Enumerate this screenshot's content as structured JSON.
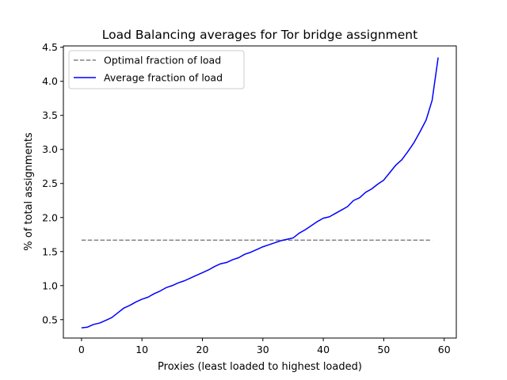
{
  "chart_data": {
    "type": "line",
    "title": "Load Balancing averages for Tor bridge assignment",
    "xlabel": "Proxies (least loaded to highest loaded)",
    "ylabel": "% of total assignments",
    "xlim": [
      -3,
      62
    ],
    "ylim": [
      0.23,
      4.52
    ],
    "x_ticks": [
      0,
      10,
      20,
      30,
      40,
      50,
      60
    ],
    "y_ticks": [
      0.5,
      1.0,
      1.5,
      2.0,
      2.5,
      3.0,
      3.5,
      4.0,
      4.5
    ],
    "y_tick_labels": [
      "0.5",
      "1.0",
      "1.5",
      "2.0",
      "2.5",
      "3.0",
      "3.5",
      "4.0",
      "4.5"
    ],
    "grid": false,
    "legend_position": "upper-left",
    "series": [
      {
        "name": "Optimal fraction of load",
        "style": "dashed",
        "color": "#808080",
        "x": [
          0,
          58
        ],
        "values": [
          1.667,
          1.667
        ]
      },
      {
        "name": "Average fraction of load",
        "style": "solid",
        "color": "#0000ff",
        "x": [
          0,
          1,
          2,
          3,
          4,
          5,
          6,
          7,
          8,
          9,
          10,
          11,
          12,
          13,
          14,
          15,
          16,
          17,
          18,
          19,
          20,
          21,
          22,
          23,
          24,
          25,
          26,
          27,
          28,
          29,
          30,
          31,
          32,
          33,
          34,
          35,
          36,
          37,
          38,
          39,
          40,
          41,
          42,
          43,
          44,
          45,
          46,
          47,
          48,
          49,
          50,
          51,
          52,
          53,
          54,
          55,
          56,
          57,
          58,
          59
        ],
        "values": [
          0.38,
          0.39,
          0.43,
          0.45,
          0.49,
          0.53,
          0.6,
          0.67,
          0.71,
          0.76,
          0.8,
          0.83,
          0.88,
          0.92,
          0.97,
          1.0,
          1.04,
          1.07,
          1.11,
          1.15,
          1.19,
          1.23,
          1.28,
          1.32,
          1.34,
          1.38,
          1.41,
          1.46,
          1.49,
          1.53,
          1.57,
          1.6,
          1.63,
          1.66,
          1.68,
          1.7,
          1.77,
          1.82,
          1.88,
          1.94,
          1.99,
          2.01,
          2.06,
          2.11,
          2.16,
          2.25,
          2.29,
          2.37,
          2.42,
          2.49,
          2.55,
          2.66,
          2.77,
          2.85,
          2.97,
          3.1,
          3.26,
          3.43,
          3.72,
          4.35
        ]
      }
    ]
  }
}
